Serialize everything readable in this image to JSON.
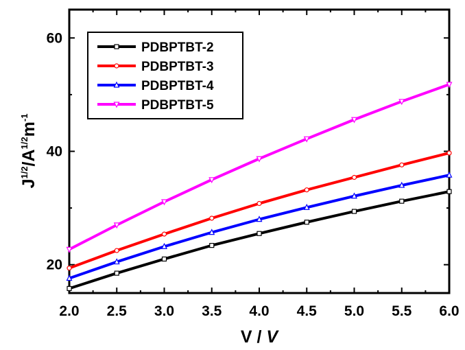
{
  "chart_data": {
    "type": "line",
    "title": "",
    "xlabel_main": "V / ",
    "xlabel_unit": "V",
    "ylabel": {
      "j": "J",
      "j_exp": "1/2",
      "a": "/A",
      "a_exp": "1/2",
      "m": "m",
      "m_exp": "-1"
    },
    "xlim": [
      2.0,
      6.0
    ],
    "ylim": [
      15,
      65
    ],
    "x_ticks": [
      "2.0",
      "2.5",
      "3.0",
      "3.5",
      "4.0",
      "4.5",
      "5.0",
      "5.5",
      "6.0"
    ],
    "y_ticks": [
      "20",
      "40",
      "60"
    ],
    "x": [
      2.0,
      2.5,
      3.0,
      3.5,
      4.0,
      4.5,
      5.0,
      5.5,
      6.0
    ],
    "legend_position": "top-left",
    "series": [
      {
        "name": "PDBPTBT-2",
        "color": "#000000",
        "marker": "square",
        "values": [
          15.8,
          18.5,
          21.0,
          23.4,
          25.5,
          27.5,
          29.4,
          31.2,
          32.9
        ]
      },
      {
        "name": "PDBPTBT-3",
        "color": "#ff0000",
        "marker": "circle",
        "values": [
          19.4,
          22.5,
          25.4,
          28.2,
          30.8,
          33.2,
          35.4,
          37.6,
          39.7
        ]
      },
      {
        "name": "PDBPTBT-4",
        "color": "#0000ff",
        "marker": "triangle-up",
        "values": [
          17.6,
          20.5,
          23.2,
          25.7,
          28.0,
          30.1,
          32.1,
          34.0,
          35.8
        ]
      },
      {
        "name": "PDBPTBT-5",
        "color": "#ff00ff",
        "marker": "triangle-down",
        "values": [
          22.7,
          27.0,
          31.1,
          35.0,
          38.7,
          42.2,
          45.6,
          48.8,
          51.8
        ]
      }
    ]
  }
}
